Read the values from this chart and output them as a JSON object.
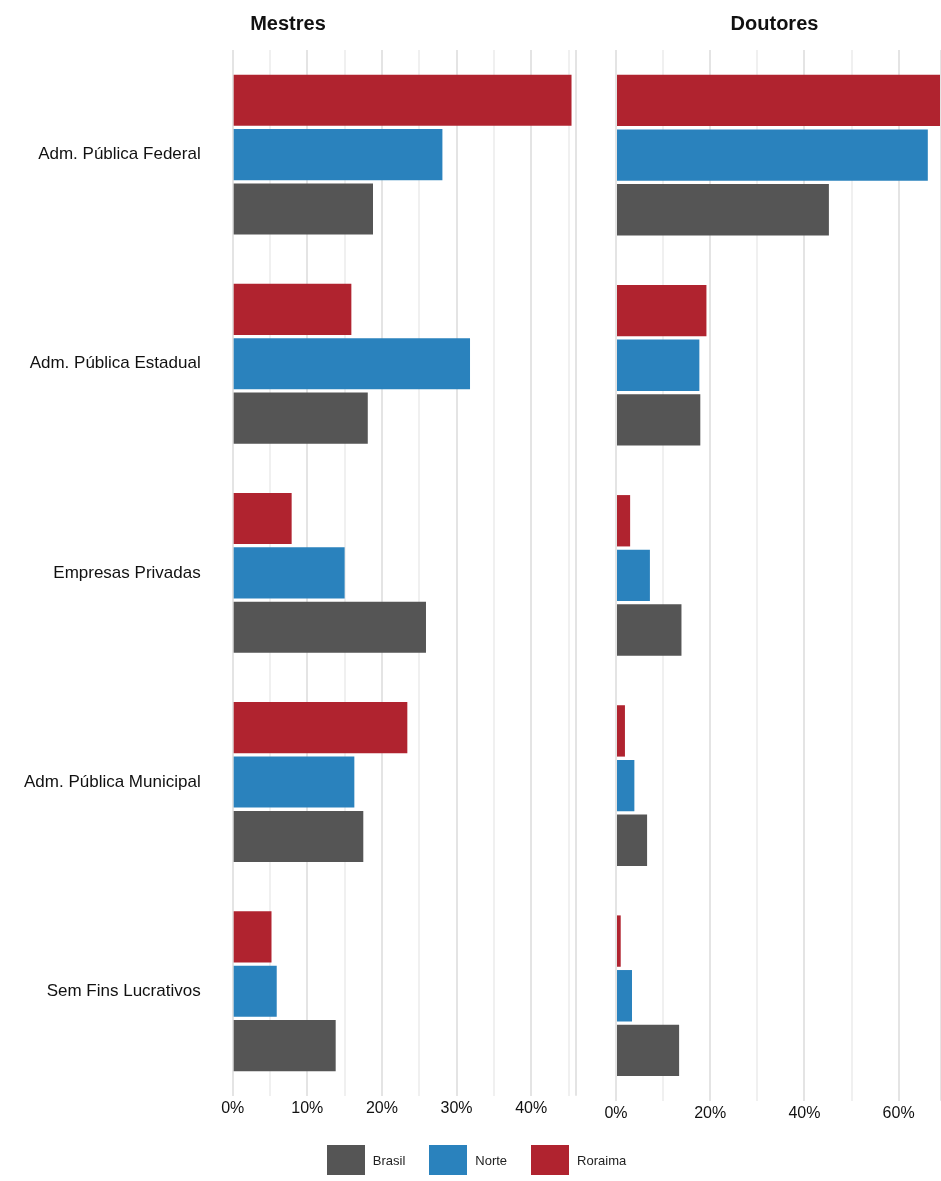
{
  "chart_data": [
    {
      "type": "bar",
      "title": "Mestres",
      "orientation": "horizontal",
      "categories": [
        "Adm. Pública Federal",
        "Adm. Pública Estadual",
        "Empresas Privadas",
        "Adm. Pública Municipal",
        "Sem Fins Lucrativos"
      ],
      "series": [
        {
          "name": "Roraima",
          "color": "#b0232f",
          "values": [
            45.4,
            15.9,
            7.9,
            23.4,
            5.2
          ]
        },
        {
          "name": "Norte",
          "color": "#2a82bd",
          "values": [
            28.1,
            31.8,
            15.0,
            16.3,
            5.9
          ]
        },
        {
          "name": "Brasil",
          "color": "#555555",
          "values": [
            18.8,
            18.1,
            25.9,
            17.5,
            13.8
          ]
        }
      ],
      "xlim": [
        0,
        46
      ],
      "xticks": [
        {
          "value": 0,
          "label": "0%"
        },
        {
          "value": 5,
          "label": null
        },
        {
          "value": 10,
          "label": "10%"
        },
        {
          "value": 15,
          "label": null
        },
        {
          "value": 20,
          "label": "20%"
        },
        {
          "value": 25,
          "label": null
        },
        {
          "value": 30,
          "label": "30%"
        },
        {
          "value": 35,
          "label": null
        },
        {
          "value": 40,
          "label": "40%"
        },
        {
          "value": 45,
          "label": null
        }
      ],
      "grid": "x",
      "legend": "bottom"
    },
    {
      "type": "bar",
      "title": "Doutores",
      "orientation": "horizontal",
      "categories": [
        null,
        null,
        null,
        null,
        null
      ],
      "series": [
        {
          "name": "Roraima",
          "color": "#b0232f",
          "values": [
            69,
            19.2,
            3.0,
            1.9,
            1.0
          ]
        },
        {
          "name": "Norte",
          "color": "#2a82bd",
          "values": [
            66.2,
            17.7,
            7.2,
            3.9,
            3.4
          ]
        },
        {
          "name": "Brasil",
          "color": "#555555",
          "values": [
            45.2,
            17.9,
            13.9,
            6.6,
            13.4
          ]
        }
      ],
      "xlim": [
        0,
        69
      ],
      "xticks": [
        {
          "value": 0,
          "label": "0%"
        },
        {
          "value": 10,
          "label": null
        },
        {
          "value": 20,
          "label": "20%"
        },
        {
          "value": 30,
          "label": null
        },
        {
          "value": 40,
          "label": "40%"
        },
        {
          "value": 50,
          "label": null
        },
        {
          "value": 60,
          "label": "60%"
        }
      ],
      "grid": "x",
      "legend": "bottom",
      "tick_labels": "x"
    }
  ]
}
